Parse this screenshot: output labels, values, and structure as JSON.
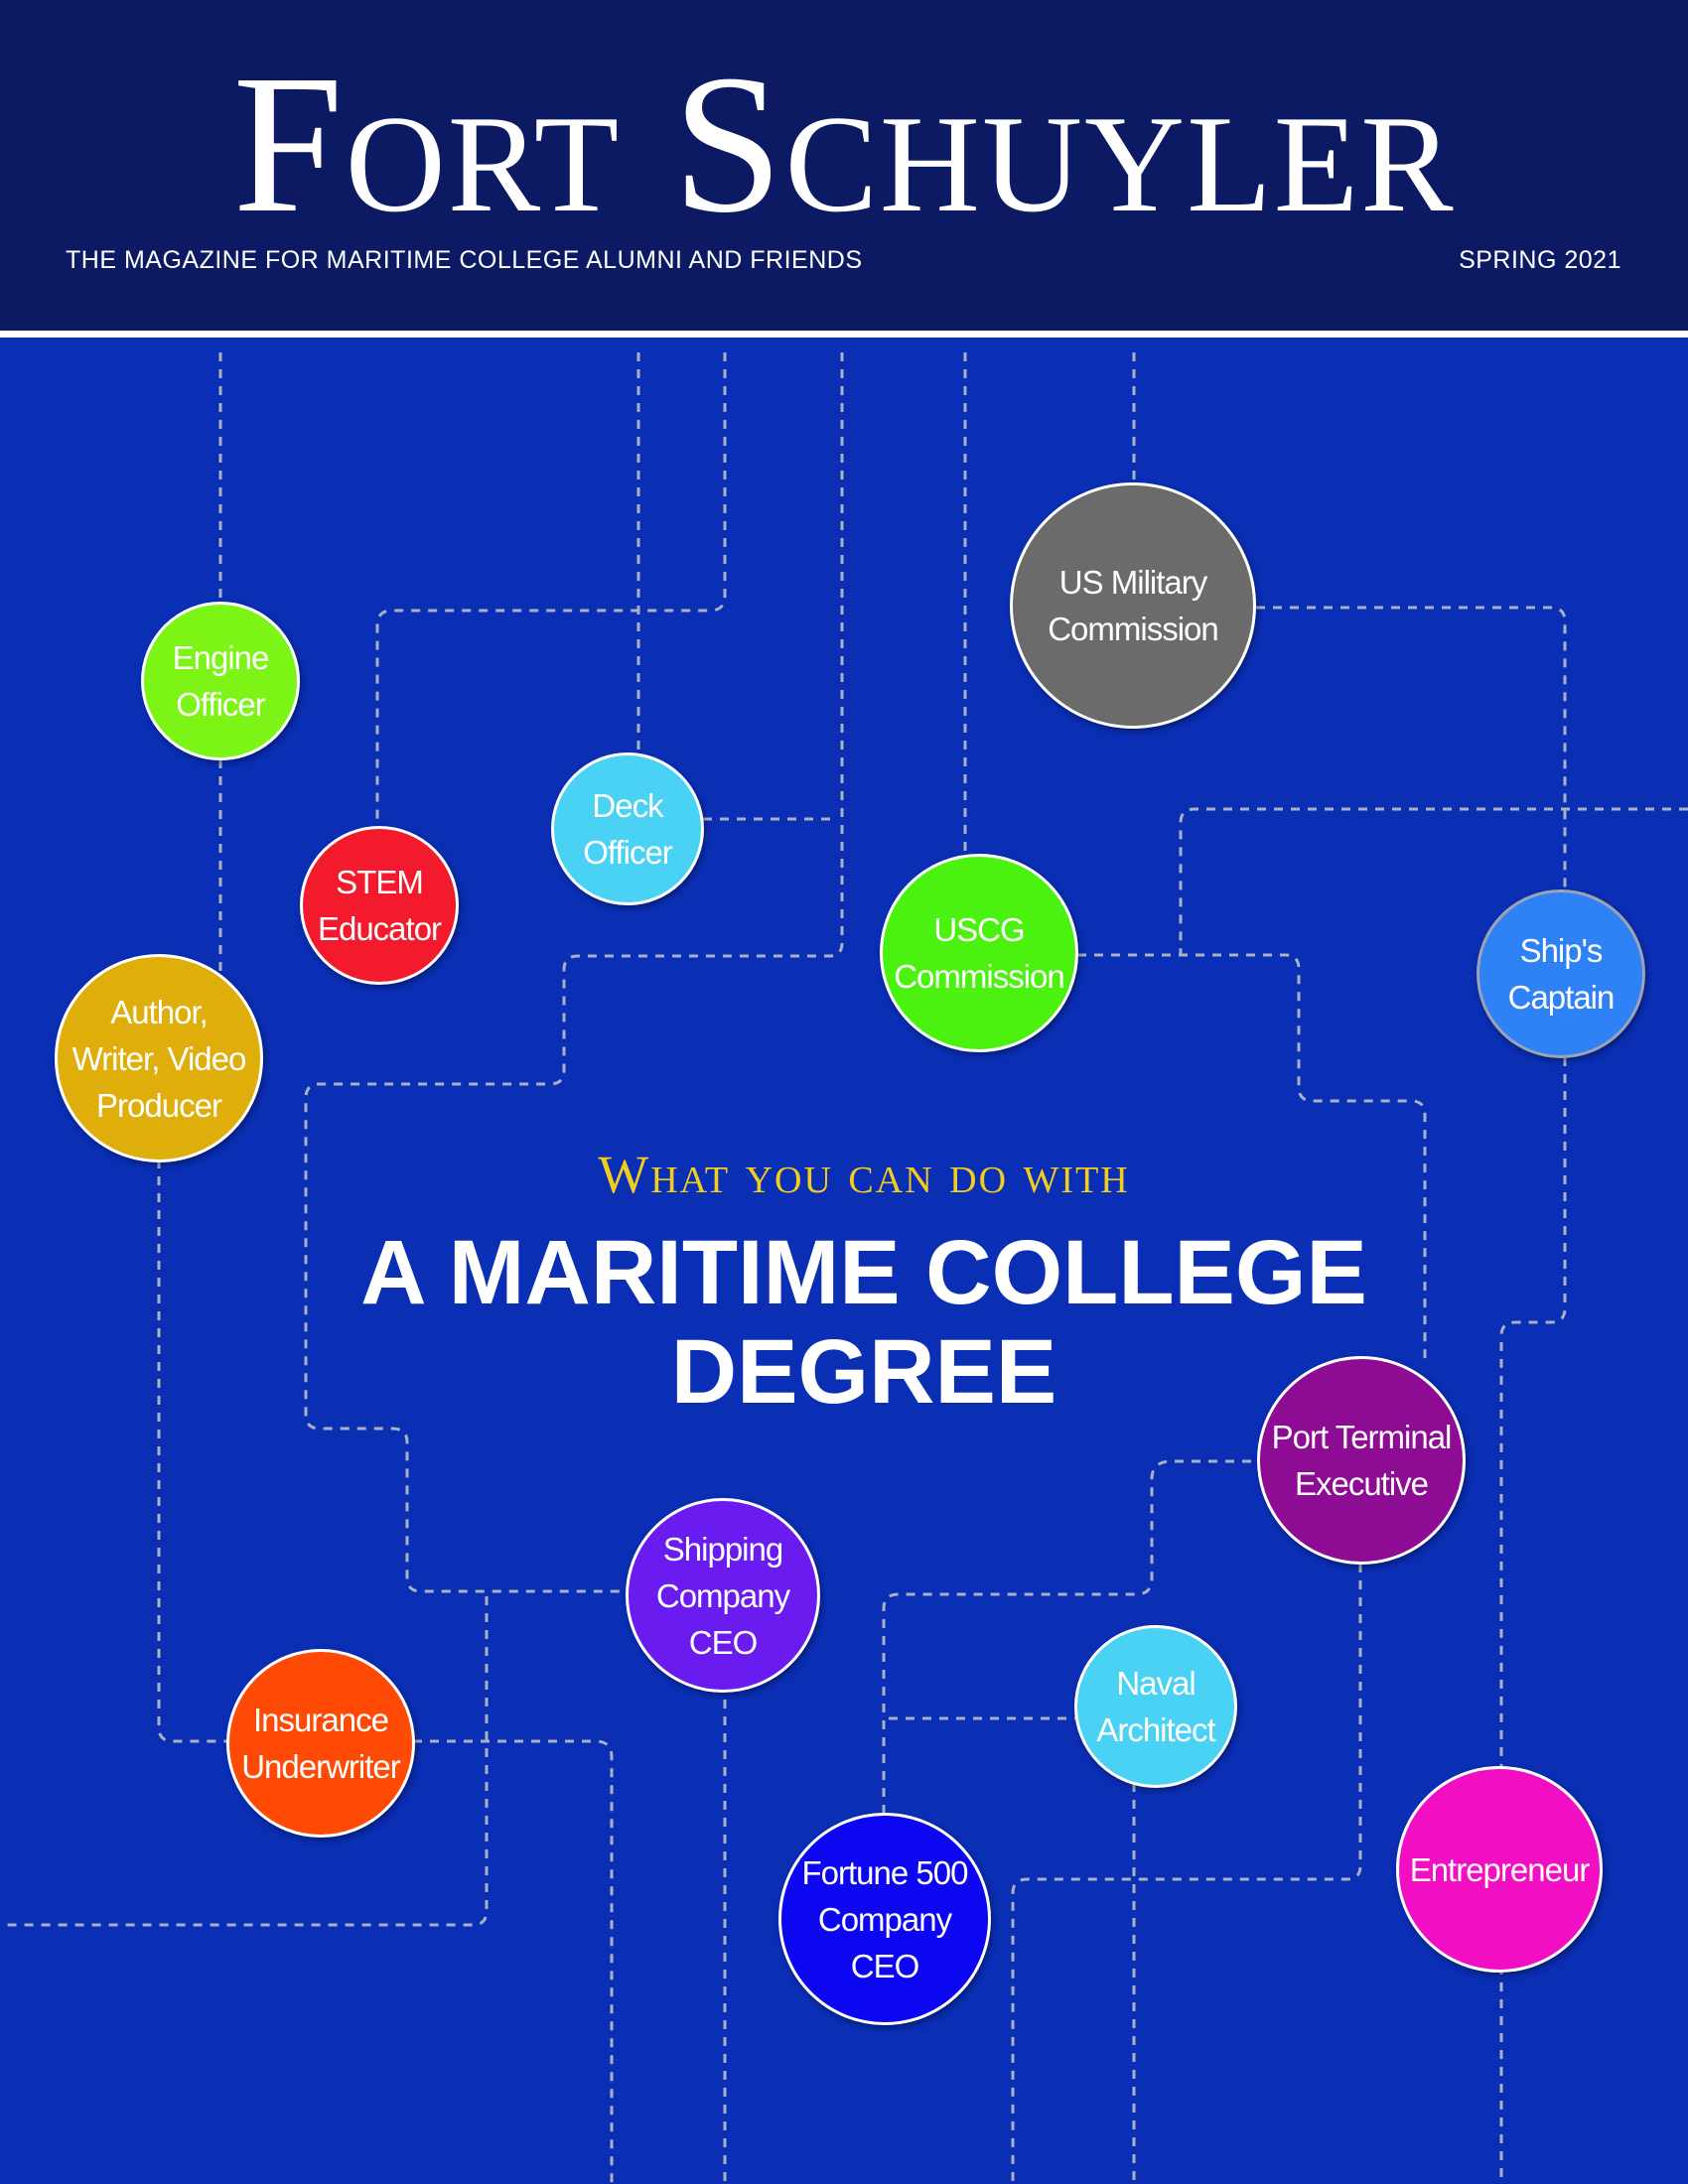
{
  "masthead": {
    "title": "Fort Schuyler",
    "tagline": "THE MAGAZINE FOR MARITIME COLLEGE ALUMNI AND FRIENDS",
    "issue": "SPRING 2021"
  },
  "feature": {
    "kicker": "What you can do with",
    "headline": "A MARITIME COLLEGE\nDEGREE"
  },
  "careers": [
    {
      "id": "engine-officer",
      "label": "Engine\nOfficer",
      "color": "#7cf516"
    },
    {
      "id": "stem-educator",
      "label": "STEM\nEducator",
      "color": "#f21a2c"
    },
    {
      "id": "deck-officer",
      "label": "Deck\nOfficer",
      "color": "#4ad2f5"
    },
    {
      "id": "us-military-commission",
      "label": "US Military\nCommission",
      "color": "#6b6b6b"
    },
    {
      "id": "uscg-commission",
      "label": "USCG\nCommission",
      "color": "#4cf20f"
    },
    {
      "id": "ships-captain",
      "label": "Ship's\nCaptain",
      "color": "#2f82f5"
    },
    {
      "id": "author-writer-video-producer",
      "label": "Author,\nWriter, Video\nProducer",
      "color": "#e0ae0a"
    },
    {
      "id": "port-terminal-executive",
      "label": "Port Terminal\nExecutive",
      "color": "#8e0b94"
    },
    {
      "id": "shipping-company-ceo",
      "label": "Shipping\nCompany\nCEO",
      "color": "#6a1cf0"
    },
    {
      "id": "naval-architect",
      "label": "Naval\nArchitect",
      "color": "#4ad2f5"
    },
    {
      "id": "insurance-underwriter",
      "label": "Insurance\nUnderwriter",
      "color": "#ff4a06"
    },
    {
      "id": "fortune-500-company-ceo",
      "label": "Fortune 500\nCompany\nCEO",
      "color": "#0d06f0"
    },
    {
      "id": "entrepreneur",
      "label": "Entrepreneur",
      "color": "#f20ec3"
    }
  ]
}
